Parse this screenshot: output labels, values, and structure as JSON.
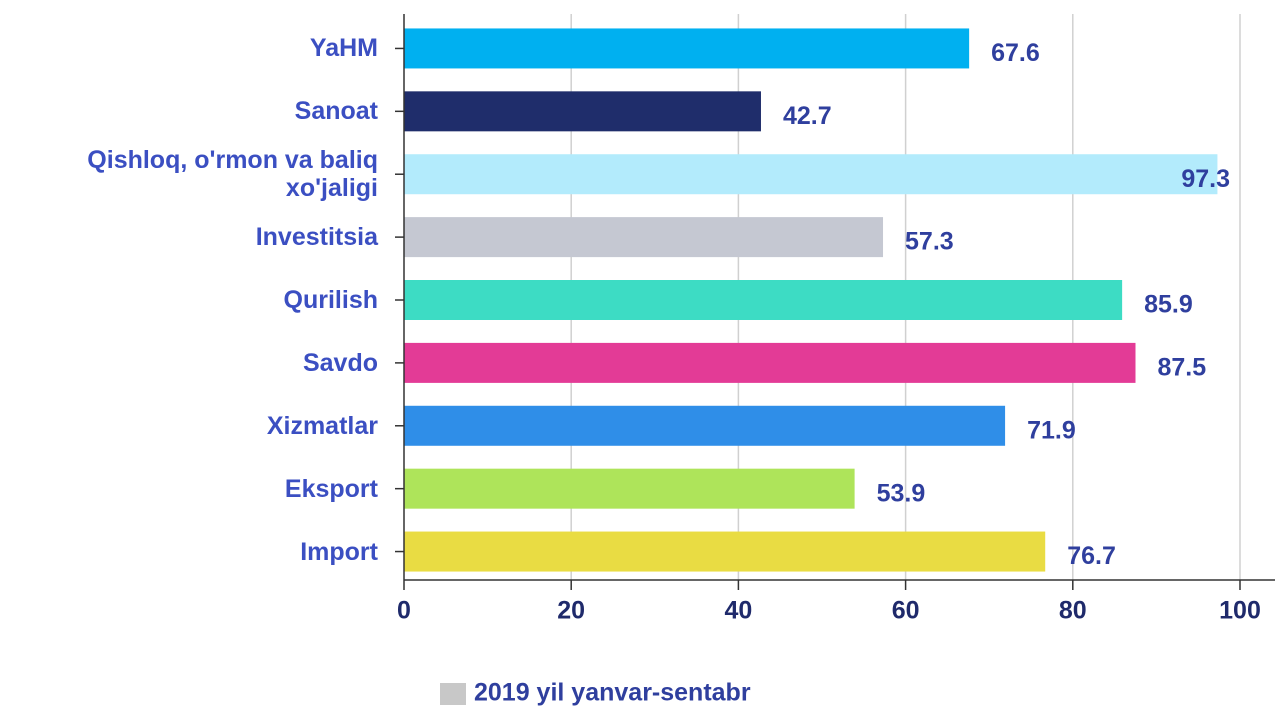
{
  "chart_data": {
    "type": "barh",
    "categories": [
      "YaHM",
      "Sanoat",
      "Qishloq, o'rmon va baliq xo'jaligi",
      "Investitsia",
      "Qurilish",
      "Savdo",
      "Xizmatlar",
      "Eksport",
      "Import"
    ],
    "series": [
      {
        "name": "2019 yil yanvar-sentabr",
        "color": "#c8c8c8",
        "values": [
          67.6,
          42.7,
          97.3,
          57.3,
          85.9,
          87.5,
          71.9,
          53.9,
          76.7
        ],
        "colors": [
          "#00b0f0",
          "#1f2d6b",
          "#b3ebfc",
          "#c5c8d2",
          "#3ddcc4",
          "#e33b96",
          "#2f8ee8",
          "#aee45a",
          "#e9dc43"
        ]
      }
    ],
    "xlim": [
      0,
      100
    ],
    "xticks": [
      0,
      20,
      40,
      60,
      80,
      100
    ],
    "grid": true,
    "legend": "bottom"
  }
}
